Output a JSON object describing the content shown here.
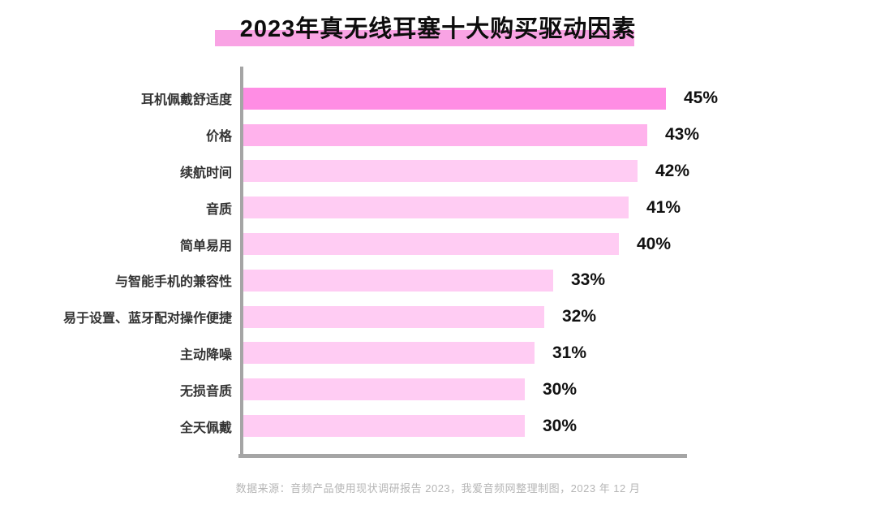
{
  "title": "2023年真无线耳塞十大购买驱动因素",
  "footer": "数据来源：音频产品使用现状调研报告 2023，我爱音频网整理制图，2023 年 12 月",
  "colors": {
    "title_highlight": "#f9a3e4",
    "bar_primary": "#ff8de4",
    "bar_secondary": "#ffb2ec",
    "bar_light": "#ffccf3",
    "axis": "#a5a5a5",
    "category_text": "#333333",
    "value_text": "#111111",
    "footer_text": "#b5b5b5"
  },
  "chart_data": {
    "type": "bar",
    "orientation": "horizontal",
    "title": "2023年真无线耳塞十大购买驱动因素",
    "xlabel": "",
    "ylabel": "",
    "grid": false,
    "legend": false,
    "xlim": [
      0,
      47.5
    ],
    "categories": [
      "耳机佩戴舒适度",
      "价格",
      "续航时间",
      "音质",
      "简单易用",
      "与智能手机的兼容性",
      "易于设置、蓝牙配对操作便捷",
      "主动降噪",
      "无损音质",
      "全天佩戴"
    ],
    "values": [
      45,
      43,
      42,
      41,
      40,
      33,
      32,
      31,
      30,
      30
    ],
    "value_labels": [
      "45%",
      "43%",
      "42%",
      "41%",
      "40%",
      "33%",
      "32%",
      "31%",
      "30%",
      "30%"
    ],
    "bar_colors": [
      "#ff8de4",
      "#ffb2ec",
      "#ffccf3",
      "#ffccf3",
      "#ffccf3",
      "#ffccf3",
      "#ffccf3",
      "#ffccf3",
      "#ffccf3",
      "#ffccf3"
    ]
  }
}
